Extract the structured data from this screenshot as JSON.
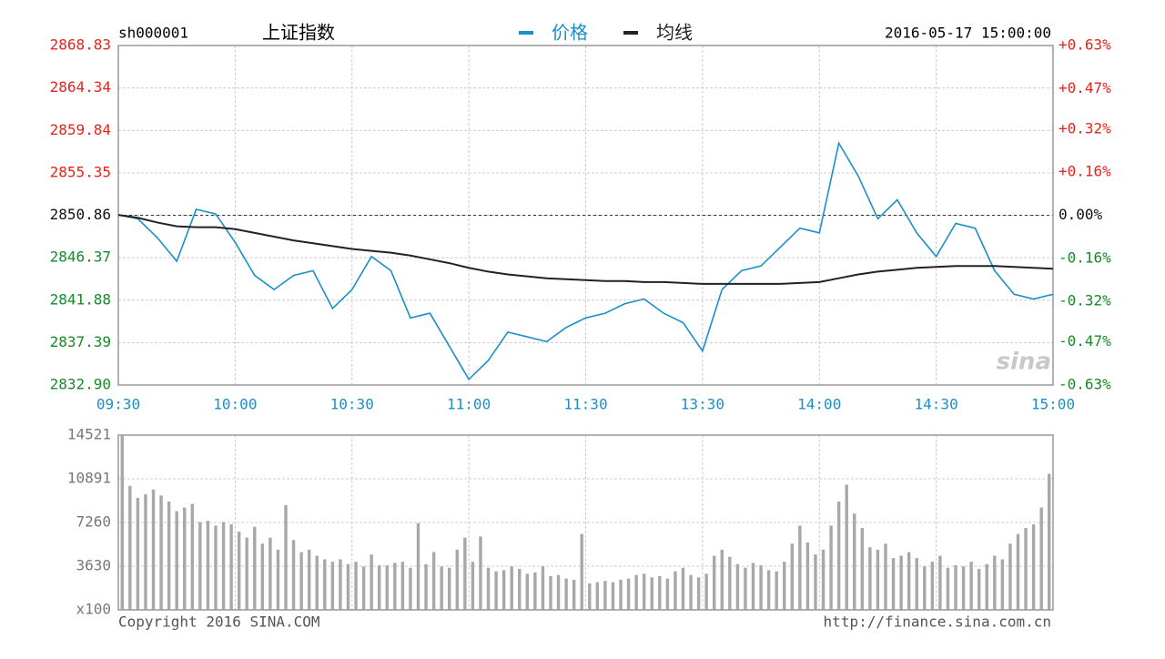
{
  "chart_data": [
    {
      "type": "line",
      "code": "sh000001",
      "title": "上证指数",
      "datetime": "2016-05-17 15:00:00",
      "watermark": "sina",
      "categories": [
        "09:30",
        null,
        null,
        null,
        null,
        null,
        "10:00",
        null,
        null,
        null,
        null,
        null,
        "10:30",
        null,
        null,
        null,
        null,
        null,
        "11:00",
        null,
        null,
        null,
        null,
        null,
        "11:30",
        null,
        null,
        null,
        null,
        null,
        "13:30",
        null,
        null,
        null,
        null,
        null,
        "14:00",
        null,
        null,
        null,
        null,
        null,
        "14:30",
        null,
        null,
        null,
        null,
        null,
        "15:00"
      ],
      "series": [
        {
          "name": "价格",
          "color": "#1a8fc8",
          "values": [
            2850.9,
            2850.5,
            2848.5,
            2846,
            2851.5,
            2851,
            2848,
            2844.5,
            2843,
            2844.5,
            2845,
            2841,
            2843,
            2846.5,
            2845,
            2840,
            2840.5,
            2837,
            2833.5,
            2835.5,
            2838.5,
            2838,
            2837.5,
            2839,
            2840,
            2840.5,
            2841.5,
            2842,
            2840.5,
            2839.5,
            2836.5,
            2843,
            2845,
            2845.5,
            2847.5,
            2849.5,
            2849,
            2858.5,
            2855,
            2850.5,
            2852.5,
            2849,
            2846.5,
            2850,
            2849.5,
            2845,
            2842.5,
            2842,
            2842.5
          ]
        },
        {
          "name": "均线",
          "color": "#222222",
          "values": [
            2850.9,
            2850.6,
            2850.1,
            2849.7,
            2849.6,
            2849.6,
            2849.4,
            2849.0,
            2848.6,
            2848.2,
            2847.9,
            2847.6,
            2847.3,
            2847.1,
            2846.9,
            2846.6,
            2846.2,
            2845.8,
            2845.3,
            2844.9,
            2844.6,
            2844.4,
            2844.2,
            2844.1,
            2844.0,
            2843.9,
            2843.9,
            2843.8,
            2843.8,
            2843.7,
            2843.6,
            2843.6,
            2843.6,
            2843.6,
            2843.6,
            2843.7,
            2843.8,
            2844.2,
            2844.6,
            2844.9,
            2845.1,
            2845.3,
            2845.4,
            2845.5,
            2845.5,
            2845.5,
            2845.4,
            2845.3,
            2845.2
          ]
        }
      ],
      "ylim": [
        2832.9,
        2868.83
      ],
      "yticks": [
        {
          "value": 2832.9,
          "label": "2832.90"
        },
        2837.39,
        2841.88,
        2846.37,
        2850.86,
        2855.35,
        2859.84,
        2864.34,
        2868.83
      ],
      "y2lim": [
        -0.63,
        0.63
      ],
      "y2ticks": [
        {
          "value": -0.63,
          "label": "-0.63%"
        },
        {
          "value": -0.47,
          "label": "-0.47%"
        },
        {
          "value": -0.32,
          "label": "-0.32%"
        },
        {
          "value": -0.16,
          "label": "-0.16%"
        },
        {
          "value": 0,
          "label": "0.00%"
        },
        {
          "value": 0.16,
          "label": "+0.16%"
        },
        {
          "value": 0.32,
          "label": "+0.32%"
        },
        {
          "value": 0.47,
          "label": "+0.47%"
        },
        {
          "value": 0.63,
          "label": "+0.63%"
        }
      ],
      "up_color": "#e8231c",
      "down_color": "#168a28",
      "flat_color": "#111111",
      "time_color": "#1a8fc8",
      "grid": true
    },
    {
      "type": "bar",
      "color": "#a8a8a8",
      "values": [
        14500,
        10300,
        9300,
        9600,
        10000,
        9500,
        9000,
        8200,
        8500,
        8800,
        7300,
        7400,
        7000,
        7300,
        7100,
        6500,
        6000,
        6900,
        5500,
        6000,
        5000,
        8700,
        5800,
        4800,
        5000,
        4500,
        4200,
        4000,
        4200,
        3800,
        4000,
        3600,
        4600,
        3700,
        3700,
        3900,
        4000,
        3500,
        7200,
        3800,
        4800,
        3600,
        3500,
        5000,
        6000,
        4000,
        6100,
        3500,
        3200,
        3300,
        3600,
        3400,
        3000,
        3100,
        3600,
        2800,
        2900,
        2600,
        2500,
        6300,
        2200,
        2300,
        2400,
        2300,
        2500,
        2600,
        2900,
        3000,
        2700,
        2800,
        2600,
        3200,
        3500,
        2900,
        2700,
        3000,
        4500,
        5000,
        4400,
        3800,
        3500,
        3900,
        3700,
        3300,
        3200,
        4000,
        5500,
        7000,
        5600,
        4600,
        5000,
        7000,
        9000,
        10400,
        8000,
        6800,
        5200,
        5000,
        5500,
        4300,
        4500,
        4800,
        4300,
        3600,
        4000,
        4500,
        3500,
        3700,
        3600,
        4000,
        3400,
        3800,
        4500,
        4200,
        5500,
        6300,
        6800,
        7100,
        8500,
        11300
      ],
      "ylim": [
        0,
        14521
      ],
      "yticks": [
        {
          "value": 0,
          "label": "x100"
        },
        3630,
        7260,
        10891,
        14521
      ],
      "grid": true
    }
  ],
  "footer": {
    "left": "Copyright 2016 SINA.COM",
    "right": "http://finance.sina.com.cn"
  }
}
